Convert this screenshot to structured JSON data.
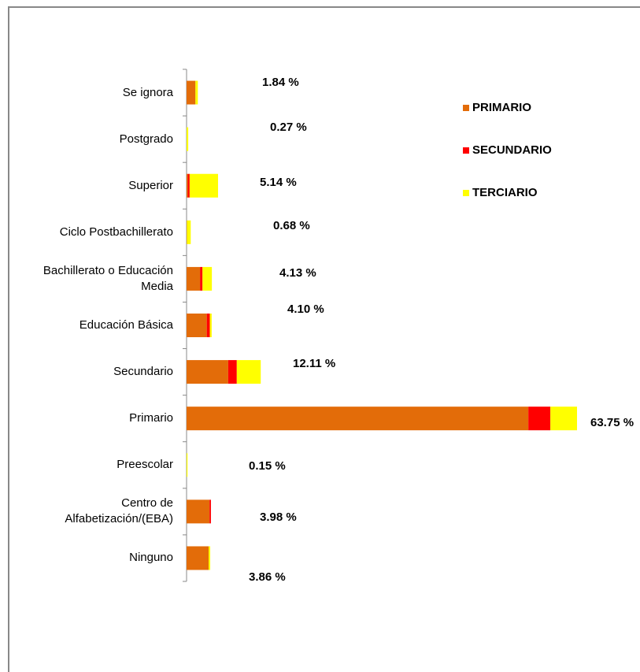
{
  "chart_data": {
    "type": "stacked-bar-horizontal",
    "categories": [
      "Se ignora",
      "Postgrado",
      "Superior",
      "Ciclo Postbachillerato",
      "Bachillerato o Educación Media",
      "Educación Básica",
      "Secundario",
      "Primario",
      "Preescolar",
      "Centro de Alfabetización/(EBA)",
      "Ninguno"
    ],
    "series": [
      {
        "name": "PRIMARIO",
        "color": "#e36c09",
        "values": [
          1.45,
          0,
          0.2,
          0.05,
          2.2,
          3.3,
          6.8,
          55.8,
          0,
          3.75,
          3.6
        ]
      },
      {
        "name": "SECUNDARIO",
        "color": "#ff0000",
        "values": [
          0,
          0,
          0.3,
          0,
          0.4,
          0.5,
          1.4,
          3.6,
          0,
          0.23,
          0
        ]
      },
      {
        "name": "TERCIARIO",
        "color": "#ffff00",
        "values": [
          0.39,
          0.27,
          4.64,
          0.63,
          1.53,
          0.3,
          3.91,
          4.35,
          0.15,
          0,
          0.26
        ]
      }
    ],
    "totals": [
      1.84,
      0.27,
      5.14,
      0.68,
      4.13,
      4.1,
      12.11,
      63.75,
      0.15,
      3.98,
      3.86
    ],
    "total_labels": [
      "1.84 %",
      "0.27 %",
      "5.14 %",
      "0.68 %",
      "4.13 %",
      "4.10 %",
      "12.11 %",
      "63.75 %",
      "0.15 %",
      "3.98 %",
      "3.86 %"
    ],
    "legend": "right-top"
  }
}
